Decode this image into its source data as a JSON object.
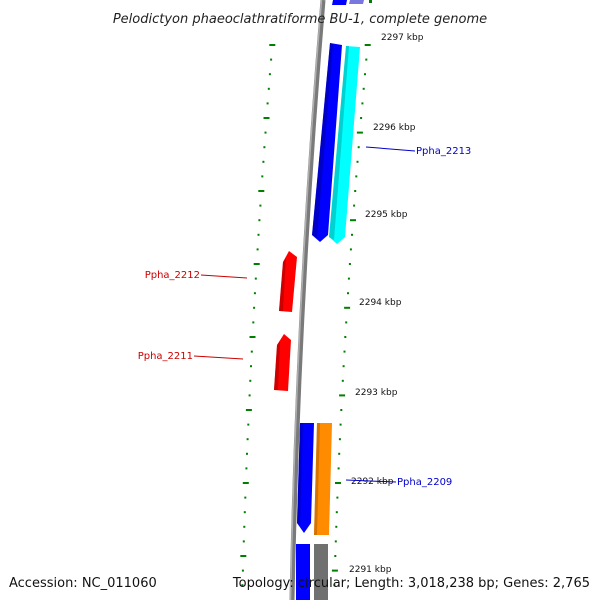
{
  "title": "Pelodictyon phaeoclathratiforme BU-1, complete genome",
  "footer": {
    "accession": "Accession: NC_011060",
    "summary": "Topology: circular; Length: 3,018,238 bp; Genes: 2,765"
  },
  "colors": {
    "backbone": "#808080",
    "ticks": "#008000",
    "forward_cds": "#0000ff",
    "forward_overlap": "#00ffff",
    "reverse_cds": "#ff0000",
    "orange_cds": "#ff8c00",
    "grey_cds": "#808080",
    "label_forward": "#0000cc",
    "label_reverse": "#cc0000"
  },
  "ticks": [
    {
      "label": "2297 kbp"
    },
    {
      "label": "2296 kbp"
    },
    {
      "label": "2295 kbp"
    },
    {
      "label": "2294 kbp"
    },
    {
      "label": "2293 kbp"
    },
    {
      "label": "2292 kbp"
    },
    {
      "label": "2291 kbp"
    }
  ],
  "gene_labels": [
    {
      "text": "Ppha_2213",
      "strand": "forward"
    },
    {
      "text": "Ppha_2212",
      "strand": "reverse"
    },
    {
      "text": "Ppha_2211",
      "strand": "reverse"
    },
    {
      "text": "Ppha_2209",
      "strand": "forward"
    }
  ]
}
